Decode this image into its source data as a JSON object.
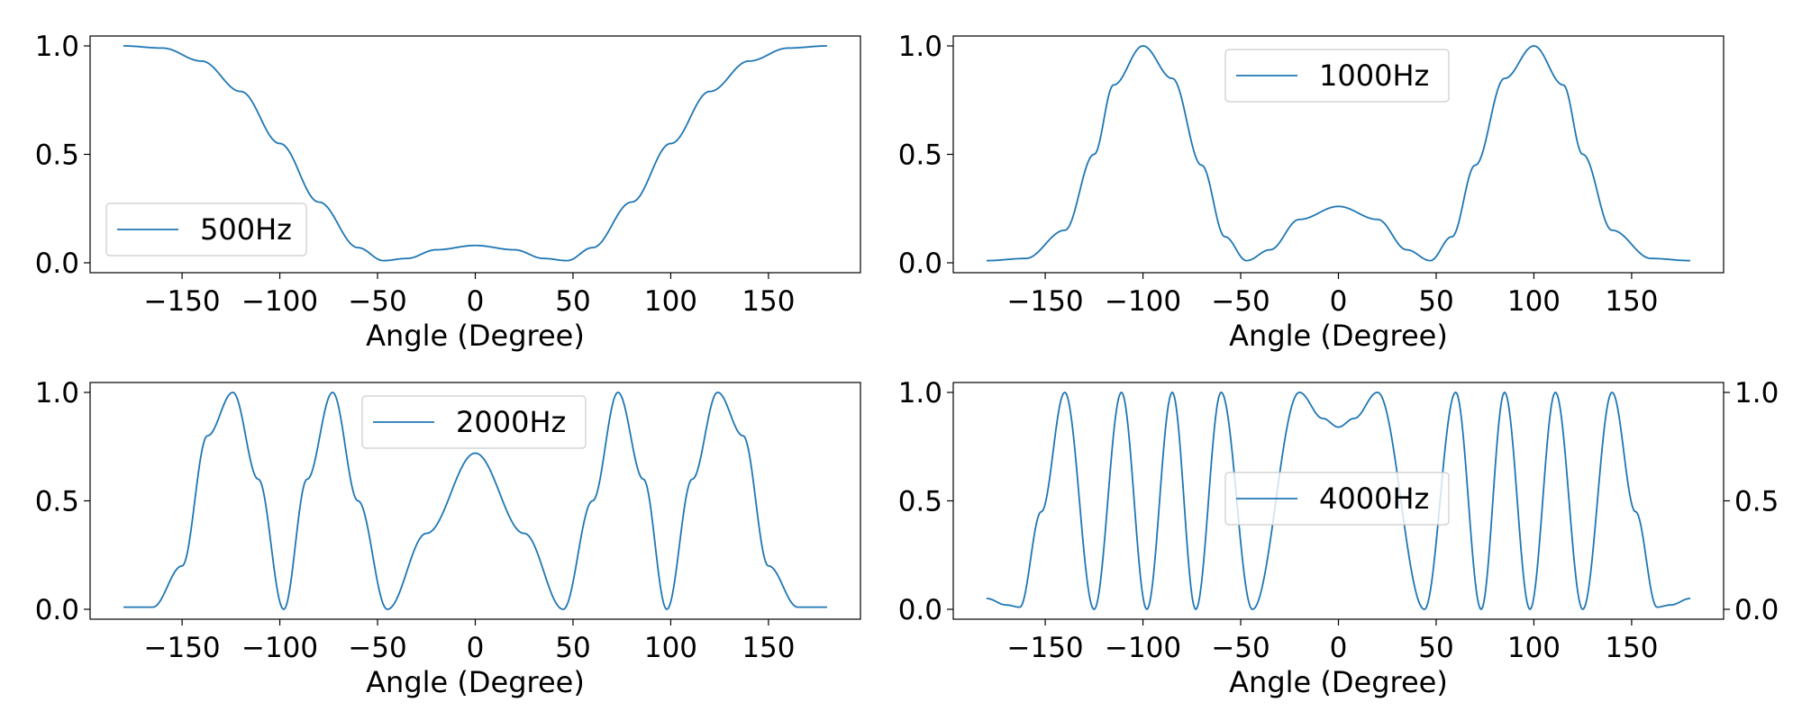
{
  "chart_data": [
    {
      "type": "line",
      "series": [
        {
          "name": "500Hz",
          "x": [
            -180,
            -160,
            -140,
            -120,
            -100,
            -80,
            -60,
            -47,
            -35,
            -20,
            0,
            20,
            35,
            47,
            60,
            80,
            100,
            120,
            140,
            160,
            180
          ],
          "y": [
            1.0,
            0.99,
            0.93,
            0.79,
            0.55,
            0.28,
            0.07,
            0.01,
            0.02,
            0.06,
            0.08,
            0.06,
            0.02,
            0.01,
            0.07,
            0.28,
            0.55,
            0.79,
            0.93,
            0.99,
            1.0
          ]
        }
      ],
      "xlabel": "Angle (Degree)",
      "xlim": [
        -180,
        180
      ],
      "ylim": [
        0.0,
        1.0
      ],
      "xticks": [
        "−150",
        "−100",
        "−50",
        "0",
        "50",
        "100",
        "150"
      ],
      "yticks": [
        "0.0",
        "0.5",
        "1.0"
      ],
      "legend_position": "lower-left",
      "y_axis_side": "left",
      "grid": false
    },
    {
      "type": "line",
      "series": [
        {
          "name": "1000Hz",
          "x": [
            -180,
            -160,
            -140,
            -125,
            -115,
            -100,
            -85,
            -70,
            -58,
            -47,
            -35,
            -20,
            0,
            20,
            35,
            47,
            58,
            70,
            85,
            100,
            115,
            125,
            140,
            160,
            180
          ],
          "y": [
            0.01,
            0.02,
            0.15,
            0.5,
            0.82,
            1.0,
            0.85,
            0.45,
            0.12,
            0.01,
            0.06,
            0.2,
            0.26,
            0.2,
            0.06,
            0.01,
            0.12,
            0.45,
            0.85,
            1.0,
            0.82,
            0.5,
            0.15,
            0.02,
            0.01
          ]
        }
      ],
      "xlabel": "Angle (Degree)",
      "xlim": [
        -180,
        180
      ],
      "ylim": [
        0.0,
        1.0
      ],
      "xticks": [
        "−150",
        "−100",
        "−50",
        "0",
        "50",
        "100",
        "150"
      ],
      "yticks": [
        "0.0",
        "0.5",
        "1.0"
      ],
      "legend_position": "upper-center",
      "y_axis_side": "left",
      "grid": false
    },
    {
      "type": "line",
      "series": [
        {
          "name": "2000Hz",
          "x": [
            -180,
            -165,
            -150,
            -137,
            -124,
            -111,
            -98,
            -86,
            -73,
            -60,
            -45,
            -25,
            0,
            25,
            45,
            60,
            73,
            86,
            98,
            111,
            124,
            137,
            150,
            165,
            180
          ],
          "y": [
            0.01,
            0.01,
            0.2,
            0.8,
            1.0,
            0.6,
            0.0,
            0.6,
            1.0,
            0.5,
            0.0,
            0.35,
            0.72,
            0.35,
            0.0,
            0.5,
            1.0,
            0.6,
            0.0,
            0.6,
            1.0,
            0.8,
            0.2,
            0.01,
            0.01
          ]
        }
      ],
      "xlabel": "Angle (Degree)",
      "xlim": [
        -180,
        180
      ],
      "ylim": [
        0.0,
        1.0
      ],
      "xticks": [
        "−150",
        "−100",
        "−50",
        "0",
        "50",
        "100",
        "150"
      ],
      "yticks": [
        "0.0",
        "0.5",
        "1.0"
      ],
      "legend_position": "upper-center",
      "y_axis_side": "left",
      "grid": false
    },
    {
      "type": "line",
      "series": [
        {
          "name": "4000Hz",
          "x": [
            -180,
            -170,
            -163,
            -152,
            -140,
            -125,
            -111,
            -98,
            -85,
            -73,
            -60,
            -44,
            -20,
            -8,
            0,
            8,
            20,
            44,
            60,
            73,
            85,
            98,
            111,
            125,
            140,
            152,
            163,
            170,
            180
          ],
          "y": [
            0.05,
            0.02,
            0.01,
            0.45,
            1.0,
            0.0,
            1.0,
            0.0,
            1.0,
            0.0,
            1.0,
            0.0,
            1.0,
            0.88,
            0.84,
            0.88,
            1.0,
            0.0,
            1.0,
            0.0,
            1.0,
            0.0,
            1.0,
            0.0,
            1.0,
            0.45,
            0.01,
            0.02,
            0.05
          ]
        }
      ],
      "xlabel": "Angle (Degree)",
      "xlim": [
        -180,
        180
      ],
      "ylim": [
        0.0,
        1.0
      ],
      "xticks": [
        "−150",
        "−100",
        "−50",
        "0",
        "50",
        "100",
        "150"
      ],
      "yticks": [
        "0.0",
        "0.5",
        "1.0"
      ],
      "legend_position": "center",
      "y_axis_side": "both",
      "grid": false
    }
  ],
  "colors": {
    "line": "#1f77b4",
    "frame": "#000000",
    "legend_border": "#cccccc"
  }
}
